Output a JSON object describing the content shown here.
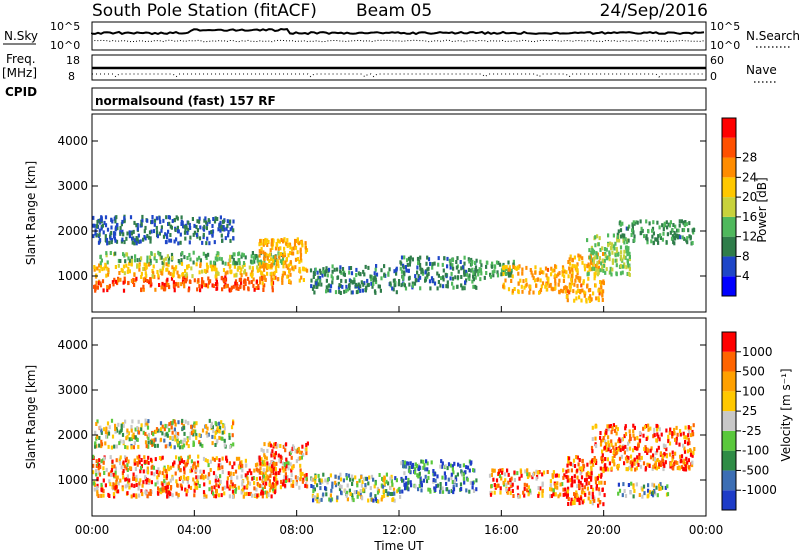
{
  "header": {
    "title": "South Pole Station (fitACF)",
    "beam": "Beam 05",
    "date": "24/Sep/2016"
  },
  "strip_nsky": {
    "left_label": "N.Sky",
    "right_label": "N.Search",
    "left_ticks": [
      "10^5",
      "10^0"
    ],
    "right_ticks": [
      "10^5",
      "10^0"
    ]
  },
  "strip_freq": {
    "left_label_line1": "Freq.",
    "left_label_line2": "[MHz]",
    "right_label": "Nave",
    "left_ticks": [
      "18",
      "8"
    ],
    "right_ticks": [
      "60",
      "0"
    ]
  },
  "strip_cpid": {
    "label": "CPID",
    "value": "normalsound (fast) 157 RF"
  },
  "chart_data": [
    {
      "type": "heatmap",
      "quantity": "Power",
      "ylabel": "Slant Range [km]",
      "ylim": [
        200,
        4600
      ],
      "yticks": [
        "1000",
        "2000",
        "3000",
        "4000"
      ],
      "ytick_values": [
        1000,
        2000,
        3000,
        4000
      ],
      "xlim_hours": [
        0,
        24
      ],
      "colorbar": {
        "label": "Power [dB]",
        "ticks": [
          "4",
          "8",
          "12",
          "16",
          "20",
          "24",
          "28"
        ],
        "range": [
          0,
          32
        ],
        "colors": [
          "#0000ff",
          "#1e46c8",
          "#2f7d4a",
          "#4fb85c",
          "#c8d23c",
          "#ffc800",
          "#ff8c00",
          "#ff5000",
          "#ff0000"
        ]
      },
      "regions": [
        {
          "t0": 0.0,
          "t1": 7.2,
          "r0": 650,
          "r1": 950,
          "level": 27
        },
        {
          "t0": 0.0,
          "t1": 7.2,
          "r0": 950,
          "r1": 1250,
          "level": 20
        },
        {
          "t0": 0.2,
          "t1": 7.5,
          "r0": 1250,
          "r1": 1500,
          "level": 12
        },
        {
          "t0": 6.5,
          "t1": 8.4,
          "r0": 800,
          "r1": 1800,
          "level": 21
        },
        {
          "t0": 0.0,
          "t1": 5.5,
          "r0": 1700,
          "r1": 2300,
          "level": 7
        },
        {
          "t0": 8.5,
          "t1": 12.0,
          "r0": 600,
          "r1": 1200,
          "level": 9
        },
        {
          "t0": 12.0,
          "t1": 15.0,
          "r0": 700,
          "r1": 1400,
          "level": 9
        },
        {
          "t0": 14.5,
          "t1": 16.5,
          "r0": 900,
          "r1": 1300,
          "level": 11
        },
        {
          "t0": 16.0,
          "t1": 18.5,
          "r0": 600,
          "r1": 1200,
          "level": 22
        },
        {
          "t0": 18.5,
          "t1": 20.0,
          "r0": 400,
          "r1": 1500,
          "level": 22
        },
        {
          "t0": 19.3,
          "t1": 21.0,
          "r0": 1000,
          "r1": 1900,
          "level": 14
        },
        {
          "t0": 20.5,
          "t1": 23.5,
          "r0": 1700,
          "r1": 2200,
          "level": 10
        }
      ]
    },
    {
      "type": "heatmap",
      "quantity": "Velocity",
      "ylabel": "Slant Range [km]",
      "ylim": [
        200,
        4600
      ],
      "yticks": [
        "1000",
        "2000",
        "3000",
        "4000"
      ],
      "ytick_values": [
        1000,
        2000,
        3000,
        4000
      ],
      "xlim_hours": [
        0,
        24
      ],
      "xlabel": "Time UT",
      "xticks": [
        "00:00",
        "04:00",
        "08:00",
        "12:00",
        "16:00",
        "20:00",
        "00:00"
      ],
      "xtick_hours": [
        0,
        4,
        8,
        12,
        16,
        20,
        24
      ],
      "colorbar": {
        "label": "Velocity [m s⁻¹]",
        "ticks": [
          "1000",
          "500",
          "100",
          "25",
          "-25",
          "-100",
          "-500",
          "-1000"
        ],
        "colors": [
          "#1e3cc8",
          "#3c6eb4",
          "#2f8c46",
          "#5ac83c",
          "#c8c8c8",
          "#ffc800",
          "#ffa000",
          "#ff6400",
          "#ff0000"
        ]
      },
      "regions": [
        {
          "t0": 0.0,
          "t1": 7.2,
          "r0": 600,
          "r1": 1500,
          "level": 6
        },
        {
          "t0": 6.5,
          "t1": 8.4,
          "r0": 800,
          "r1": 1800,
          "level": 6
        },
        {
          "t0": 0.0,
          "t1": 5.5,
          "r0": 1700,
          "r1": 2300,
          "level": 4
        },
        {
          "t0": 8.5,
          "t1": 12.0,
          "r0": 500,
          "r1": 1100,
          "level": 3
        },
        {
          "t0": 12.0,
          "t1": 15.0,
          "r0": 700,
          "r1": 1400,
          "level": 1
        },
        {
          "t0": 15.5,
          "t1": 18.5,
          "r0": 600,
          "r1": 1200,
          "level": 6
        },
        {
          "t0": 18.5,
          "t1": 20.0,
          "r0": 400,
          "r1": 1500,
          "level": 7
        },
        {
          "t0": 19.5,
          "t1": 23.5,
          "r0": 1200,
          "r1": 2200,
          "level": 7
        },
        {
          "t0": 20.5,
          "t1": 22.5,
          "r0": 600,
          "r1": 900,
          "level": 3
        }
      ]
    }
  ]
}
